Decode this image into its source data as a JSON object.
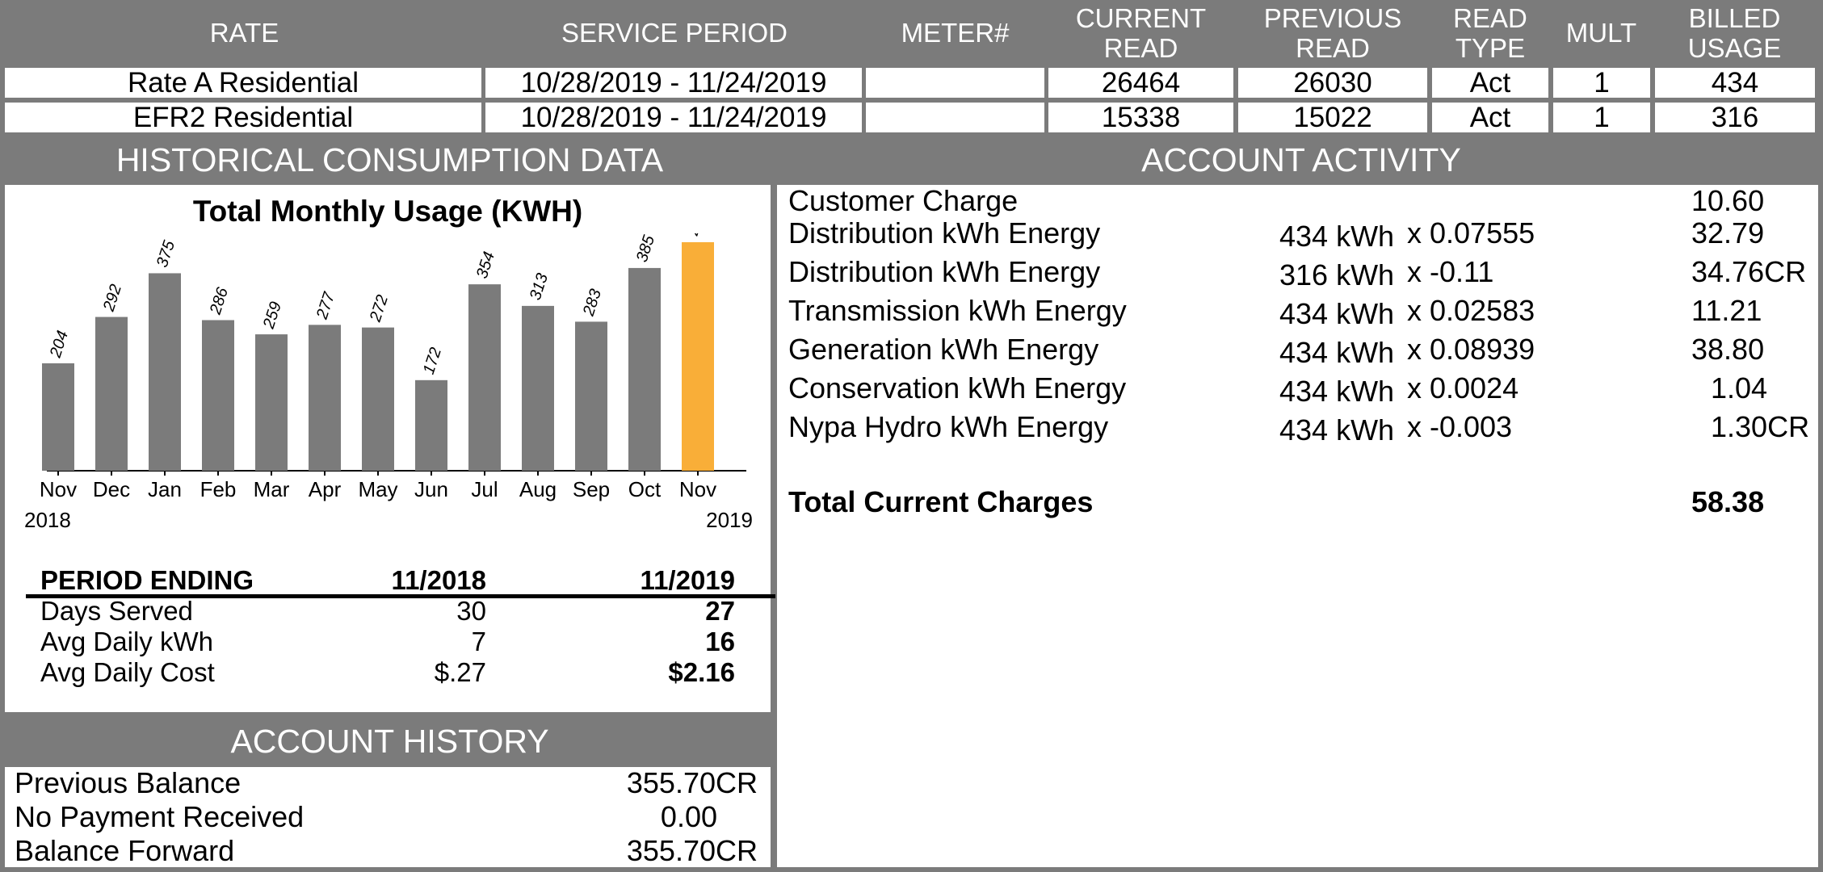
{
  "meter_table": {
    "headers": {
      "rate": "RATE",
      "service_period": "SERVICE PERIOD",
      "meter": "METER#",
      "current_read": [
        "CURRENT",
        "READ"
      ],
      "previous_read": [
        "PREVIOUS",
        "READ"
      ],
      "read_type": [
        "READ",
        "TYPE"
      ],
      "mult": "MULT",
      "billed_usage": [
        "BILLED",
        "USAGE"
      ]
    },
    "rows": [
      {
        "rate": "Rate A Residential",
        "period": "10/28/2019 - 11/24/2019",
        "meter": "",
        "current": "26464",
        "previous": "26030",
        "type": "Act",
        "mult": "1",
        "usage": "434"
      },
      {
        "rate": "EFR2 Residential",
        "period": "10/28/2019 - 11/24/2019",
        "meter": "",
        "current": "15338",
        "previous": "15022",
        "type": "Act",
        "mult": "1",
        "usage": "316"
      }
    ]
  },
  "sections": {
    "historical": "HISTORICAL CONSUMPTION DATA",
    "activity": "ACCOUNT ACTIVITY",
    "history": "ACCOUNT HISTORY"
  },
  "chart_data": {
    "type": "bar",
    "title": "Total Monthly Usage (KWH)",
    "categories": [
      "Nov",
      "Dec",
      "Jan",
      "Feb",
      "Mar",
      "Apr",
      "May",
      "Jun",
      "Jul",
      "Aug",
      "Sep",
      "Oct",
      "Nov"
    ],
    "values": [
      204,
      292,
      375,
      286,
      259,
      277,
      272,
      172,
      354,
      313,
      283,
      385,
      434
    ],
    "year_start": "2018",
    "year_end": "2019",
    "bar_color": "#7b7b7b",
    "highlight_color": "#f9ae38",
    "highlight_index": 12,
    "ylim": [
      0,
      460
    ]
  },
  "period_table": {
    "header": {
      "label": "PERIOD ENDING",
      "col1": "11/2018",
      "col2": "11/2019"
    },
    "rows": [
      {
        "label": "Days Served",
        "v1": "30",
        "v2": "27"
      },
      {
        "label": "Avg Daily kWh",
        "v1": "7",
        "v2": "16"
      },
      {
        "label": "Avg Daily Cost",
        "v1": "$.27",
        "v2": "$2.16"
      }
    ]
  },
  "account_history": [
    {
      "label": "Previous Balance",
      "value": "355.70CR"
    },
    {
      "label": "No Payment Received",
      "value": "0.00"
    },
    {
      "label": "Balance Forward",
      "value": "355.70CR"
    }
  ],
  "account_activity": {
    "lines": [
      {
        "label": "Customer Charge",
        "qty": "",
        "rate": "",
        "amount": "10.60"
      },
      {
        "label": "Distribution kWh Energy",
        "qty": "434 kWh",
        "rate": "x 0.07555",
        "amount": "32.79"
      },
      {
        "label": "Distribution kWh Energy",
        "qty": "316 kWh",
        "rate": "x -0.11",
        "amount": "34.76CR"
      },
      {
        "label": "Transmission kWh Energy",
        "qty": "434 kWh",
        "rate": "x 0.02583",
        "amount": "11.21"
      },
      {
        "label": "Generation kWh Energy",
        "qty": "434 kWh",
        "rate": "x 0.08939",
        "amount": "38.80"
      },
      {
        "label": "Conservation kWh Energy",
        "qty": "434 kWh",
        "rate": "x 0.0024",
        "amount": "1.04"
      },
      {
        "label": "Nypa Hydro kWh Energy",
        "qty": "434 kWh",
        "rate": "x -0.003",
        "amount": "1.30CR"
      }
    ],
    "total_label": "Total Current Charges",
    "total_amount": "58.38"
  }
}
